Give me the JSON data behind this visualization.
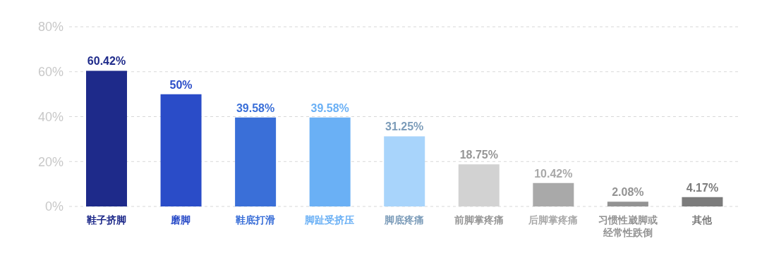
{
  "chart_data": {
    "type": "bar",
    "categories": [
      "鞋子挤脚",
      "磨脚",
      "鞋底打滑",
      "脚趾受挤压",
      "脚底疼痛",
      "前脚掌疼痛",
      "后脚掌疼痛",
      "习惯性崴脚或经常性跌倒",
      "其他"
    ],
    "values": [
      60.42,
      50,
      39.58,
      39.58,
      31.25,
      18.75,
      10.42,
      2.08,
      4.17
    ],
    "value_labels": [
      "60.42%",
      "50%",
      "39.58%",
      "39.58%",
      "31.25%",
      "18.75%",
      "10.42%",
      "2.08%",
      "4.17%"
    ],
    "colors": [
      "#1e2a8a",
      "#2a4cc8",
      "#3a6fd8",
      "#6ab0f5",
      "#a8d4fb",
      "#d2d2d2",
      "#a9a9a9",
      "#939393",
      "#7c7c7c"
    ],
    "ylim": [
      0,
      80
    ],
    "yticks": [
      {
        "value": 0,
        "label": "0%"
      },
      {
        "value": 20,
        "label": "20%"
      },
      {
        "value": 40,
        "label": "40%"
      },
      {
        "value": 60,
        "label": "60%"
      },
      {
        "value": 80,
        "label": "80%"
      }
    ],
    "grid": "y"
  }
}
